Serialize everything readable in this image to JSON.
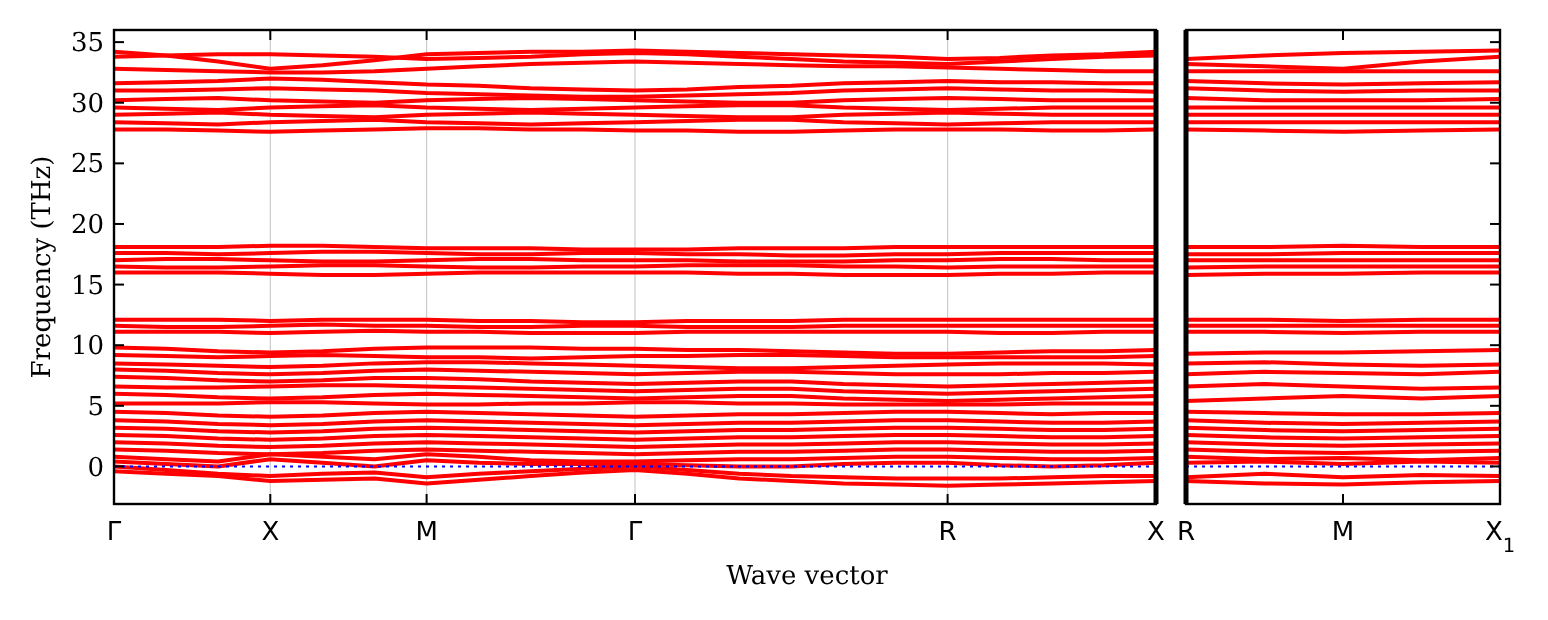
{
  "chart_data": [
    {
      "type": "line",
      "xlabel": "Wave vector",
      "ylabel": "Frequency (THz)",
      "categories": [
        "Γ",
        null,
        null,
        "X",
        null,
        null,
        "M",
        null,
        null,
        null,
        "Γ",
        null,
        null,
        null,
        null,
        null,
        "R",
        null,
        null,
        null,
        "X"
      ],
      "ylim": [
        -3.1,
        36
      ],
      "yticks": [
        0,
        5,
        10,
        15,
        20,
        25,
        30,
        35
      ],
      "grid": "x",
      "line_style": "solid",
      "marker": "none",
      "ref_lines": [
        {
          "axis": "y",
          "value": 0,
          "color": "#0000ff",
          "line_style": "dotted"
        }
      ],
      "series": [
        {
          "color": "#ff0000",
          "values": [
            34.2,
            33.9,
            33.4,
            32.8,
            33.1,
            33.5,
            34.0,
            34.1,
            34.2,
            34.2,
            34.3,
            34.2,
            34.1,
            34.0,
            33.9,
            33.8,
            33.6,
            33.7,
            33.9,
            34.0,
            34.2
          ]
        },
        {
          "color": "#ff0000",
          "values": [
            33.8,
            33.9,
            34.0,
            34.0,
            33.9,
            33.8,
            33.6,
            33.7,
            33.8,
            34.0,
            34.1,
            34.0,
            33.8,
            33.6,
            33.4,
            33.3,
            33.2,
            33.4,
            33.6,
            33.8,
            33.9
          ]
        },
        {
          "color": "#ff0000",
          "values": [
            32.8,
            32.7,
            32.6,
            32.5,
            32.5,
            32.6,
            32.8,
            33.0,
            33.2,
            33.3,
            33.4,
            33.3,
            33.2,
            33.1,
            33.0,
            33.0,
            32.9,
            32.8,
            32.7,
            32.6,
            32.6
          ]
        },
        {
          "color": "#ff0000",
          "values": [
            31.6,
            31.7,
            31.8,
            32.0,
            31.9,
            31.7,
            31.5,
            31.4,
            31.2,
            31.1,
            31.0,
            31.1,
            31.3,
            31.4,
            31.6,
            31.7,
            31.8,
            31.7,
            31.7,
            31.6,
            31.6
          ]
        },
        {
          "color": "#ff0000",
          "values": [
            31.0,
            31.0,
            31.1,
            31.2,
            31.1,
            31.0,
            30.8,
            30.7,
            30.6,
            30.5,
            30.5,
            30.6,
            30.7,
            30.8,
            31.0,
            31.1,
            31.2,
            31.1,
            31.0,
            31.0,
            30.9
          ]
        },
        {
          "color": "#ff0000",
          "values": [
            30.2,
            30.3,
            30.4,
            30.2,
            30.1,
            30.0,
            30.2,
            30.3,
            30.4,
            30.3,
            30.2,
            30.1,
            30.0,
            30.0,
            30.2,
            30.3,
            30.4,
            30.3,
            30.2,
            30.2,
            30.2
          ]
        },
        {
          "color": "#ff0000",
          "values": [
            29.6,
            29.5,
            29.4,
            29.6,
            29.7,
            29.8,
            29.6,
            29.5,
            29.4,
            29.5,
            29.6,
            29.7,
            29.8,
            29.8,
            29.6,
            29.5,
            29.4,
            29.5,
            29.6,
            29.6,
            29.6
          ]
        },
        {
          "color": "#ff0000",
          "values": [
            29.0,
            29.1,
            29.2,
            29.0,
            28.9,
            28.8,
            29.0,
            29.1,
            29.2,
            29.1,
            29.0,
            28.9,
            28.8,
            28.8,
            29.0,
            29.1,
            29.2,
            29.1,
            29.0,
            29.0,
            29.0
          ]
        },
        {
          "color": "#ff0000",
          "values": [
            28.4,
            28.3,
            28.2,
            28.4,
            28.5,
            28.6,
            28.4,
            28.3,
            28.2,
            28.3,
            28.4,
            28.5,
            28.6,
            28.6,
            28.4,
            28.3,
            28.2,
            28.3,
            28.4,
            28.4,
            28.4
          ]
        },
        {
          "color": "#ff0000",
          "values": [
            27.8,
            27.8,
            27.7,
            27.6,
            27.7,
            27.8,
            27.9,
            27.9,
            27.8,
            27.8,
            27.7,
            27.7,
            27.6,
            27.6,
            27.7,
            27.8,
            27.8,
            27.8,
            27.7,
            27.7,
            27.8
          ]
        },
        {
          "color": "#ff0000",
          "values": [
            18.1,
            18.1,
            18.1,
            18.2,
            18.2,
            18.1,
            18.0,
            18.0,
            18.0,
            17.9,
            17.9,
            17.9,
            18.0,
            18.0,
            18.0,
            18.1,
            18.1,
            18.1,
            18.1,
            18.1,
            18.1
          ]
        },
        {
          "color": "#ff0000",
          "values": [
            17.6,
            17.6,
            17.5,
            17.6,
            17.7,
            17.7,
            17.6,
            17.5,
            17.5,
            17.6,
            17.6,
            17.5,
            17.5,
            17.4,
            17.4,
            17.5,
            17.5,
            17.6,
            17.6,
            17.6,
            17.6
          ]
        },
        {
          "color": "#ff0000",
          "values": [
            17.0,
            17.1,
            17.1,
            17.0,
            16.9,
            16.9,
            17.0,
            17.1,
            17.1,
            17.0,
            17.0,
            17.0,
            16.9,
            16.9,
            16.9,
            17.0,
            17.0,
            17.1,
            17.1,
            17.0,
            17.0
          ]
        },
        {
          "color": "#ff0000",
          "values": [
            16.5,
            16.4,
            16.4,
            16.5,
            16.6,
            16.6,
            16.5,
            16.4,
            16.4,
            16.5,
            16.5,
            16.6,
            16.6,
            16.6,
            16.5,
            16.5,
            16.4,
            16.5,
            16.5,
            16.5,
            16.5
          ]
        },
        {
          "color": "#ff0000",
          "values": [
            16.0,
            16.0,
            16.0,
            15.9,
            15.8,
            15.8,
            15.9,
            16.0,
            16.0,
            16.0,
            16.0,
            16.0,
            15.9,
            15.9,
            15.8,
            15.8,
            15.8,
            15.9,
            15.9,
            16.0,
            16.0
          ]
        },
        {
          "color": "#ff0000",
          "values": [
            12.1,
            12.1,
            12.1,
            12.0,
            12.1,
            12.1,
            12.1,
            12.0,
            12.0,
            11.9,
            11.9,
            12.0,
            12.0,
            12.0,
            12.1,
            12.1,
            12.1,
            12.1,
            12.1,
            12.1,
            12.1
          ]
        },
        {
          "color": "#ff0000",
          "values": [
            11.6,
            11.5,
            11.5,
            11.6,
            11.7,
            11.6,
            11.6,
            11.5,
            11.5,
            11.6,
            11.6,
            11.5,
            11.5,
            11.5,
            11.6,
            11.6,
            11.6,
            11.6,
            11.6,
            11.6,
            11.6
          ]
        },
        {
          "color": "#ff0000",
          "values": [
            11.1,
            11.1,
            11.1,
            11.0,
            11.1,
            11.2,
            11.1,
            11.1,
            11.0,
            11.0,
            11.0,
            11.1,
            11.1,
            11.1,
            11.1,
            11.1,
            11.1,
            11.0,
            11.0,
            11.1,
            11.1
          ]
        },
        {
          "color": "#ff0000",
          "values": [
            9.8,
            9.7,
            9.5,
            9.4,
            9.5,
            9.7,
            9.8,
            9.8,
            9.8,
            9.7,
            9.7,
            9.6,
            9.6,
            9.5,
            9.4,
            9.3,
            9.3,
            9.4,
            9.5,
            9.5,
            9.6
          ]
        },
        {
          "color": "#ff0000",
          "values": [
            9.2,
            9.1,
            9.0,
            9.1,
            9.2,
            9.1,
            9.0,
            9.0,
            8.9,
            9.0,
            9.1,
            9.1,
            9.2,
            9.2,
            9.1,
            9.0,
            9.0,
            9.0,
            9.0,
            9.0,
            9.1
          ]
        },
        {
          "color": "#ff0000",
          "values": [
            8.5,
            8.4,
            8.3,
            8.2,
            8.3,
            8.5,
            8.6,
            8.6,
            8.5,
            8.4,
            8.3,
            8.2,
            8.1,
            8.1,
            8.2,
            8.3,
            8.4,
            8.5,
            8.5,
            8.5,
            8.4
          ]
        },
        {
          "color": "#ff0000",
          "values": [
            8.0,
            7.9,
            7.7,
            7.6,
            7.7,
            7.9,
            8.0,
            7.9,
            7.8,
            7.7,
            7.6,
            7.7,
            7.8,
            7.8,
            7.7,
            7.6,
            7.6,
            7.6,
            7.7,
            7.7,
            7.8
          ]
        },
        {
          "color": "#ff0000",
          "values": [
            7.4,
            7.3,
            7.1,
            7.0,
            7.1,
            7.3,
            7.3,
            7.2,
            7.0,
            6.9,
            6.8,
            6.9,
            7.0,
            7.0,
            6.8,
            6.7,
            6.6,
            6.7,
            6.8,
            6.9,
            7.0
          ]
        },
        {
          "color": "#ff0000",
          "values": [
            6.6,
            6.5,
            6.5,
            6.6,
            6.7,
            6.7,
            6.6,
            6.5,
            6.4,
            6.3,
            6.2,
            6.3,
            6.4,
            6.4,
            6.2,
            6.1,
            6.0,
            6.1,
            6.2,
            6.3,
            6.4
          ]
        },
        {
          "color": "#ff0000",
          "values": [
            6.0,
            5.9,
            5.7,
            5.6,
            5.7,
            5.9,
            6.0,
            5.9,
            5.8,
            5.7,
            5.6,
            5.7,
            5.8,
            5.8,
            5.6,
            5.5,
            5.4,
            5.5,
            5.6,
            5.7,
            5.8
          ]
        },
        {
          "color": "#ff0000",
          "values": [
            5.2,
            5.2,
            5.2,
            5.3,
            5.3,
            5.2,
            5.1,
            5.1,
            5.2,
            5.2,
            5.3,
            5.3,
            5.2,
            5.2,
            5.1,
            5.1,
            5.1,
            5.1,
            5.2,
            5.2,
            5.2
          ]
        },
        {
          "color": "#ff0000",
          "values": [
            4.5,
            4.4,
            4.2,
            4.1,
            4.2,
            4.4,
            4.5,
            4.4,
            4.3,
            4.2,
            4.1,
            4.2,
            4.3,
            4.3,
            4.4,
            4.5,
            4.5,
            4.4,
            4.3,
            4.4,
            4.4
          ]
        },
        {
          "color": "#ff0000",
          "values": [
            3.8,
            3.7,
            3.5,
            3.4,
            3.5,
            3.7,
            3.8,
            3.7,
            3.6,
            3.5,
            3.4,
            3.5,
            3.6,
            3.6,
            3.7,
            3.8,
            3.8,
            3.7,
            3.6,
            3.6,
            3.7
          ]
        },
        {
          "color": "#ff0000",
          "values": [
            3.2,
            3.1,
            2.9,
            2.8,
            2.9,
            3.1,
            3.2,
            3.1,
            3.0,
            2.9,
            2.8,
            2.9,
            3.0,
            3.0,
            3.1,
            3.2,
            3.2,
            3.1,
            3.0,
            3.0,
            3.1
          ]
        },
        {
          "color": "#ff0000",
          "values": [
            2.6,
            2.5,
            2.3,
            2.2,
            2.3,
            2.5,
            2.6,
            2.5,
            2.4,
            2.3,
            2.2,
            2.3,
            2.4,
            2.4,
            2.5,
            2.6,
            2.6,
            2.5,
            2.4,
            2.4,
            2.5
          ]
        },
        {
          "color": "#ff0000",
          "values": [
            2.0,
            1.9,
            1.7,
            1.6,
            1.7,
            1.9,
            2.0,
            1.9,
            1.8,
            1.7,
            1.6,
            1.7,
            1.8,
            1.8,
            1.9,
            2.0,
            2.0,
            1.9,
            1.8,
            1.8,
            1.9
          ]
        },
        {
          "color": "#ff0000",
          "values": [
            1.4,
            1.3,
            1.1,
            1.0,
            1.1,
            1.3,
            1.4,
            1.3,
            1.2,
            1.1,
            1.0,
            1.1,
            1.2,
            1.2,
            1.3,
            1.4,
            1.4,
            1.3,
            1.2,
            1.2,
            1.3
          ]
        },
        {
          "color": "#ff0000",
          "values": [
            0.8,
            0.6,
            0.4,
            1.0,
            0.8,
            0.6,
            1.0,
            0.8,
            0.5,
            0.4,
            0.4,
            0.5,
            0.6,
            0.6,
            0.7,
            0.8,
            0.8,
            0.7,
            0.6,
            0.6,
            0.7
          ]
        },
        {
          "color": "#ff0000",
          "values": [
            0.4,
            0.2,
            0.0,
            0.6,
            0.3,
            0.0,
            0.5,
            0.3,
            0.2,
            0.2,
            0.2,
            0.1,
            0.0,
            0.0,
            0.2,
            0.3,
            0.3,
            0.1,
            0.0,
            0.1,
            0.3
          ]
        },
        {
          "color": "#ff0000",
          "values": [
            0.0,
            -0.3,
            -0.6,
            -0.8,
            -0.6,
            -0.5,
            -0.9,
            -0.6,
            -0.4,
            -0.2,
            0.0,
            -0.3,
            -0.6,
            -0.8,
            -0.9,
            -1.0,
            -1.0,
            -1.0,
            -0.9,
            -0.8,
            -0.8
          ]
        },
        {
          "color": "#ff0000",
          "values": [
            -0.4,
            -0.6,
            -0.8,
            -1.2,
            -1.1,
            -1.0,
            -1.4,
            -1.1,
            -0.8,
            -0.5,
            -0.3,
            -0.6,
            -1.0,
            -1.2,
            -1.4,
            -1.5,
            -1.6,
            -1.5,
            -1.4,
            -1.3,
            -1.2
          ]
        }
      ]
    },
    {
      "type": "line",
      "categories": [
        "R",
        null,
        "M",
        null,
        "X$_{1}$"
      ],
      "ylim": [
        -3.1,
        36
      ],
      "yticks": [
        0,
        5,
        10,
        15,
        20,
        25,
        30,
        35
      ],
      "tick_labels": "x",
      "line_style": "solid",
      "marker": "none",
      "ref_lines": [
        {
          "axis": "y",
          "value": 0,
          "color": "#0000ff",
          "line_style": "dotted"
        }
      ],
      "series": [
        {
          "color": "#ff0000",
          "values": [
            33.6,
            33.9,
            34.1,
            34.2,
            34.3
          ]
        },
        {
          "color": "#ff0000",
          "values": [
            33.2,
            33.0,
            32.8,
            33.4,
            33.8
          ]
        },
        {
          "color": "#ff0000",
          "values": [
            32.6,
            32.6,
            32.6,
            32.6,
            32.6
          ]
        },
        {
          "color": "#ff0000",
          "values": [
            31.8,
            31.6,
            31.5,
            31.6,
            31.7
          ]
        },
        {
          "color": "#ff0000",
          "values": [
            31.2,
            31.0,
            30.9,
            31.0,
            31.0
          ]
        },
        {
          "color": "#ff0000",
          "values": [
            30.4,
            30.2,
            30.2,
            30.2,
            30.3
          ]
        },
        {
          "color": "#ff0000",
          "values": [
            29.6,
            29.6,
            29.6,
            29.6,
            29.6
          ]
        },
        {
          "color": "#ff0000",
          "values": [
            29.0,
            29.0,
            29.0,
            29.0,
            29.0
          ]
        },
        {
          "color": "#ff0000",
          "values": [
            28.4,
            28.4,
            28.4,
            28.4,
            28.4
          ]
        },
        {
          "color": "#ff0000",
          "values": [
            27.8,
            27.7,
            27.6,
            27.7,
            27.8
          ]
        },
        {
          "color": "#ff0000",
          "values": [
            18.1,
            18.1,
            18.2,
            18.1,
            18.1
          ]
        },
        {
          "color": "#ff0000",
          "values": [
            17.5,
            17.5,
            17.6,
            17.6,
            17.6
          ]
        },
        {
          "color": "#ff0000",
          "values": [
            17.0,
            17.0,
            17.0,
            17.0,
            17.0
          ]
        },
        {
          "color": "#ff0000",
          "values": [
            16.4,
            16.5,
            16.5,
            16.5,
            16.5
          ]
        },
        {
          "color": "#ff0000",
          "values": [
            15.8,
            15.9,
            15.9,
            16.0,
            16.0
          ]
        },
        {
          "color": "#ff0000",
          "values": [
            12.1,
            12.1,
            12.0,
            12.1,
            12.1
          ]
        },
        {
          "color": "#ff0000",
          "values": [
            11.6,
            11.6,
            11.6,
            11.6,
            11.6
          ]
        },
        {
          "color": "#ff0000",
          "values": [
            11.1,
            11.1,
            11.0,
            11.1,
            11.1
          ]
        },
        {
          "color": "#ff0000",
          "values": [
            9.3,
            9.4,
            9.4,
            9.5,
            9.6
          ]
        },
        {
          "color": "#ff0000",
          "values": [
            8.5,
            8.6,
            8.4,
            8.3,
            8.4
          ]
        },
        {
          "color": "#ff0000",
          "values": [
            7.6,
            7.8,
            7.7,
            7.6,
            7.8
          ]
        },
        {
          "color": "#ff0000",
          "values": [
            6.6,
            6.8,
            6.6,
            6.4,
            6.5
          ]
        },
        {
          "color": "#ff0000",
          "values": [
            5.4,
            5.6,
            5.8,
            5.6,
            5.8
          ]
        },
        {
          "color": "#ff0000",
          "values": [
            4.5,
            4.4,
            4.3,
            4.3,
            4.4
          ]
        },
        {
          "color": "#ff0000",
          "values": [
            3.8,
            3.6,
            3.5,
            3.6,
            3.7
          ]
        },
        {
          "color": "#ff0000",
          "values": [
            3.2,
            3.0,
            2.9,
            3.0,
            3.1
          ]
        },
        {
          "color": "#ff0000",
          "values": [
            2.6,
            2.4,
            2.3,
            2.4,
            2.5
          ]
        },
        {
          "color": "#ff0000",
          "values": [
            2.0,
            1.8,
            1.7,
            1.8,
            1.9
          ]
        },
        {
          "color": "#ff0000",
          "values": [
            1.4,
            1.2,
            1.1,
            1.2,
            1.3
          ]
        },
        {
          "color": "#ff0000",
          "values": [
            0.8,
            0.6,
            0.7,
            0.5,
            0.7
          ]
        },
        {
          "color": "#ff0000",
          "values": [
            0.3,
            0.4,
            0.2,
            0.4,
            0.3
          ]
        },
        {
          "color": "#ff0000",
          "values": [
            -0.9,
            -0.6,
            -0.9,
            -0.7,
            -0.8
          ]
        },
        {
          "color": "#ff0000",
          "values": [
            -1.2,
            -1.4,
            -1.5,
            -1.3,
            -1.2
          ]
        }
      ]
    }
  ]
}
